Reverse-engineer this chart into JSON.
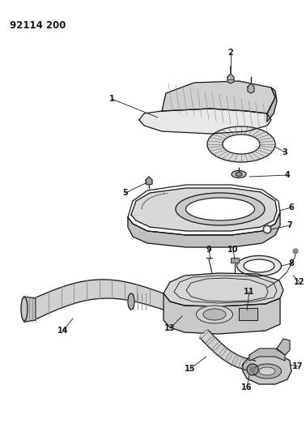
{
  "title": "92114 200",
  "bg_color": "#ffffff",
  "line_color": "#1a1a1a",
  "figsize": [
    3.78,
    5.33
  ],
  "dpi": 100,
  "title_fontsize": 8.5,
  "label_fontsize": 7,
  "fill_light": "#e0e0e0",
  "fill_mid": "#c8c8c8",
  "fill_dark": "#a8a8a8",
  "fill_white": "#f5f5f5",
  "hatch_color": "#888888"
}
